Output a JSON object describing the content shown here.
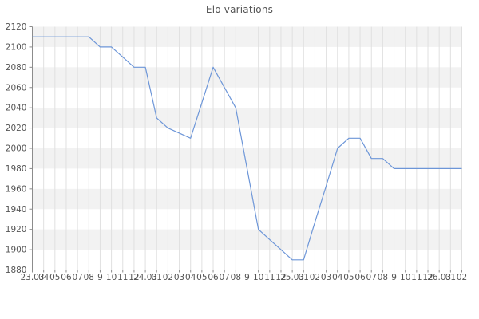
{
  "title": "Elo variations",
  "chart_data": {
    "type": "line",
    "title": "Elo variations",
    "xlabel": "",
    "ylabel": "",
    "legend": "none",
    "grid": "on",
    "ylim": [
      1880,
      2120
    ],
    "ytick_step": 20,
    "y_tick_labels": [
      "2120",
      "2100",
      "2080",
      "2060",
      "2040",
      "2020",
      "2000",
      "1980",
      "1960",
      "1940",
      "1920",
      "1900",
      "1880"
    ],
    "categories": [
      "23.03",
      "04",
      "05",
      "06",
      "07",
      "08",
      "9",
      "10",
      "11",
      "12",
      "24.03",
      "01",
      "02",
      "03",
      "04",
      "05",
      "06",
      "07",
      "08",
      "9",
      "10",
      "11",
      "12",
      "25.03",
      "01",
      "02",
      "03",
      "04",
      "05",
      "06",
      "07",
      "08",
      "9",
      "10",
      "11",
      "12",
      "26.03",
      "01",
      "02"
    ],
    "series": [
      {
        "name": "Elo",
        "values": [
          2110,
          2110,
          2110,
          2110,
          2110,
          2110,
          2100,
          2100,
          2090,
          2080,
          2080,
          2030,
          2020,
          2015,
          2010,
          2045,
          2080,
          2060,
          2040,
          1980,
          1920,
          1910,
          1900,
          1890,
          1890,
          1927,
          1963,
          2000,
          2010,
          2010,
          1990,
          1990,
          1980,
          1980,
          1980,
          1980,
          1980,
          1980,
          1980
        ]
      }
    ],
    "colors": {
      "line": "#6d96d8",
      "stripe": "#f2f2f2",
      "grid": "#e0e0e0",
      "axis": "#8c8c8c",
      "tick_label": "#555555",
      "title": "#555555",
      "background": "#ffffff"
    }
  }
}
